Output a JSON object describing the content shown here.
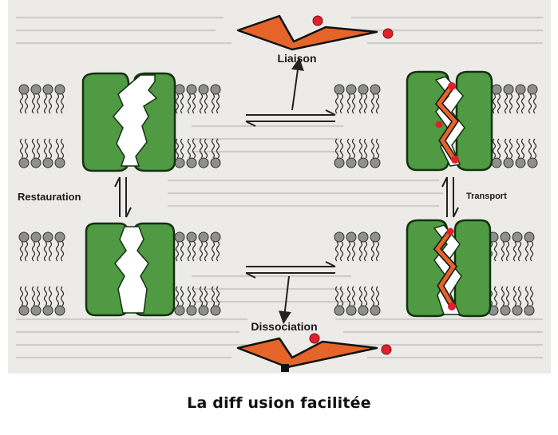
{
  "diagram": {
    "labels": {
      "binding": "Liaison",
      "transport": "Transport",
      "restoration": "Restauration",
      "dissociation": "Dissociation"
    },
    "caption": "La diff usion facilitée",
    "colors": {
      "protein": "#4f9a43",
      "protein_edge": "#14320f",
      "lipid_head": "#8f8f8f",
      "lipid_edge": "#333333",
      "solute": "#e5642a",
      "solute_tip": "#e0212b",
      "paper": "#ecebe8"
    }
  }
}
